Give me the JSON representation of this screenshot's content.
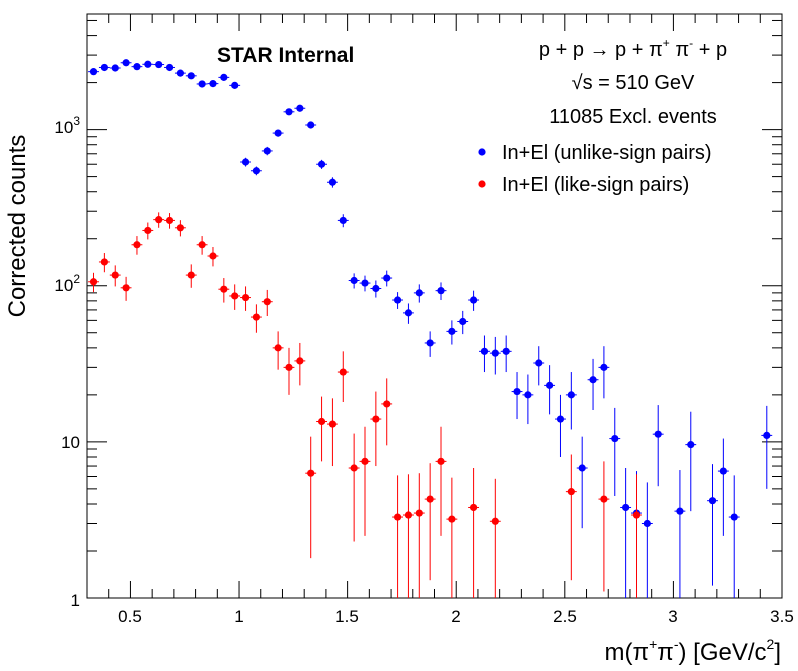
{
  "chart_data": {
    "type": "scatter",
    "yscale": "log",
    "xlim": [
      0.3,
      3.5
    ],
    "ylim": [
      1,
      5500
    ],
    "xlabel": "m(π⁺π⁻) [GeV/c²]",
    "xlabel_base": "m(π",
    "xlabel_sup1": "+",
    "xlabel_mid": "π",
    "xlabel_sup2": "-",
    "xlabel_tail": ") [GeV/c",
    "xlabel_sup3": "2",
    "xlabel_end": "]",
    "ylabel": "Corrected counts",
    "watermark": "STAR Internal",
    "header": {
      "reaction": "p + p → p + π⁺ π⁻ + p",
      "reaction_lhs": "p + p → p + π",
      "reaction_sup1": "+",
      "reaction_mid": " π",
      "reaction_sup2": "-",
      "reaction_rhs": " + p",
      "energy": "√s = 510 GeV",
      "events": "11085 Excl. events"
    },
    "x_ticks": [
      "0.5",
      "1",
      "1.5",
      "2",
      "2.5",
      "3",
      "3.5"
    ],
    "y_ticks": [
      "1",
      "10",
      "10²",
      "10³"
    ],
    "y_tick_base": "10",
    "y_tick_exp2": "2",
    "y_tick_exp3": "3",
    "legend_position": "top-right",
    "series": [
      {
        "name": "In+El (unlike-sign pairs)",
        "color": "#0000ff",
        "points": [
          [
            0.33,
            2350,
            60
          ],
          [
            0.38,
            2500,
            60
          ],
          [
            0.43,
            2480,
            60
          ],
          [
            0.48,
            2680,
            70
          ],
          [
            0.53,
            2530,
            60
          ],
          [
            0.58,
            2620,
            60
          ],
          [
            0.63,
            2610,
            60
          ],
          [
            0.68,
            2500,
            60
          ],
          [
            0.73,
            2300,
            60
          ],
          [
            0.78,
            2210,
            60
          ],
          [
            0.83,
            1960,
            55
          ],
          [
            0.88,
            1970,
            55
          ],
          [
            0.93,
            2160,
            60
          ],
          [
            0.98,
            1920,
            55
          ],
          [
            1.03,
            620,
            40
          ],
          [
            1.08,
            545,
            35
          ],
          [
            1.13,
            730,
            45
          ],
          [
            1.18,
            950,
            50
          ],
          [
            1.23,
            1300,
            60
          ],
          [
            1.28,
            1370,
            60
          ],
          [
            1.33,
            1070,
            50
          ],
          [
            1.38,
            600,
            40
          ],
          [
            1.43,
            460,
            35
          ],
          [
            1.48,
            262,
            25
          ],
          [
            1.53,
            108,
            12
          ],
          [
            1.58,
            104,
            12
          ],
          [
            1.63,
            96,
            12
          ],
          [
            1.68,
            112,
            13
          ],
          [
            1.73,
            81,
            10
          ],
          [
            1.78,
            67,
            10
          ],
          [
            1.83,
            90,
            12
          ],
          [
            1.88,
            43,
            8
          ],
          [
            1.93,
            93,
            12
          ],
          [
            1.98,
            51,
            9
          ],
          [
            2.03,
            59,
            10
          ],
          [
            2.08,
            81,
            12
          ],
          [
            2.13,
            38,
            10
          ],
          [
            2.18,
            37,
            10
          ],
          [
            2.23,
            38,
            10
          ],
          [
            2.28,
            21,
            7
          ],
          [
            2.33,
            20,
            7
          ],
          [
            2.38,
            32,
            9
          ],
          [
            2.43,
            23,
            8
          ],
          [
            2.48,
            14,
            6
          ],
          [
            2.53,
            20,
            8
          ],
          [
            2.58,
            6.8,
            4
          ],
          [
            2.63,
            25,
            9
          ],
          [
            2.68,
            30,
            11
          ],
          [
            2.73,
            10.5,
            6
          ],
          [
            2.78,
            3.8,
            3
          ],
          [
            2.83,
            3.5,
            3
          ],
          [
            2.88,
            3.0,
            2.5
          ],
          [
            2.93,
            11.2,
            6
          ],
          [
            3.03,
            3.6,
            3
          ],
          [
            3.08,
            9.6,
            6
          ],
          [
            3.18,
            4.2,
            3
          ],
          [
            3.23,
            6.5,
            4
          ],
          [
            3.28,
            3.3,
            2.8
          ],
          [
            3.43,
            11,
            6
          ]
        ]
      },
      {
        "name": "In+El (like-sign pairs)",
        "color": "#ff0000",
        "points": [
          [
            0.33,
            106,
            15
          ],
          [
            0.38,
            142,
            20
          ],
          [
            0.43,
            117,
            18
          ],
          [
            0.48,
            97,
            17
          ],
          [
            0.53,
            183,
            25
          ],
          [
            0.58,
            226,
            28
          ],
          [
            0.63,
            265,
            30
          ],
          [
            0.68,
            262,
            30
          ],
          [
            0.73,
            235,
            28
          ],
          [
            0.78,
            117,
            20
          ],
          [
            0.83,
            183,
            25
          ],
          [
            0.88,
            155,
            22
          ],
          [
            0.93,
            95,
            17
          ],
          [
            0.98,
            86,
            16
          ],
          [
            1.03,
            84,
            15
          ],
          [
            1.08,
            63,
            13
          ],
          [
            1.13,
            79,
            15
          ],
          [
            1.18,
            40,
            11
          ],
          [
            1.23,
            30,
            10
          ],
          [
            1.28,
            33,
            10
          ],
          [
            1.33,
            6.3,
            4.5
          ],
          [
            1.38,
            13.5,
            6
          ],
          [
            1.43,
            13,
            6
          ],
          [
            1.48,
            28,
            10
          ],
          [
            1.53,
            6.8,
            4.5
          ],
          [
            1.58,
            7.5,
            5
          ],
          [
            1.63,
            14,
            7
          ],
          [
            1.68,
            17.5,
            8
          ],
          [
            1.73,
            3.3,
            2.8
          ],
          [
            1.78,
            3.4,
            2.8
          ],
          [
            1.83,
            3.5,
            2.8
          ],
          [
            1.88,
            4.3,
            3
          ],
          [
            1.93,
            7.5,
            5
          ],
          [
            1.98,
            3.2,
            2.7
          ],
          [
            2.08,
            3.8,
            3
          ],
          [
            2.18,
            3.1,
            2.7
          ],
          [
            2.53,
            4.8,
            3.5
          ],
          [
            2.68,
            4.3,
            3.2
          ],
          [
            2.83,
            3.4,
            2.8
          ]
        ]
      }
    ]
  }
}
